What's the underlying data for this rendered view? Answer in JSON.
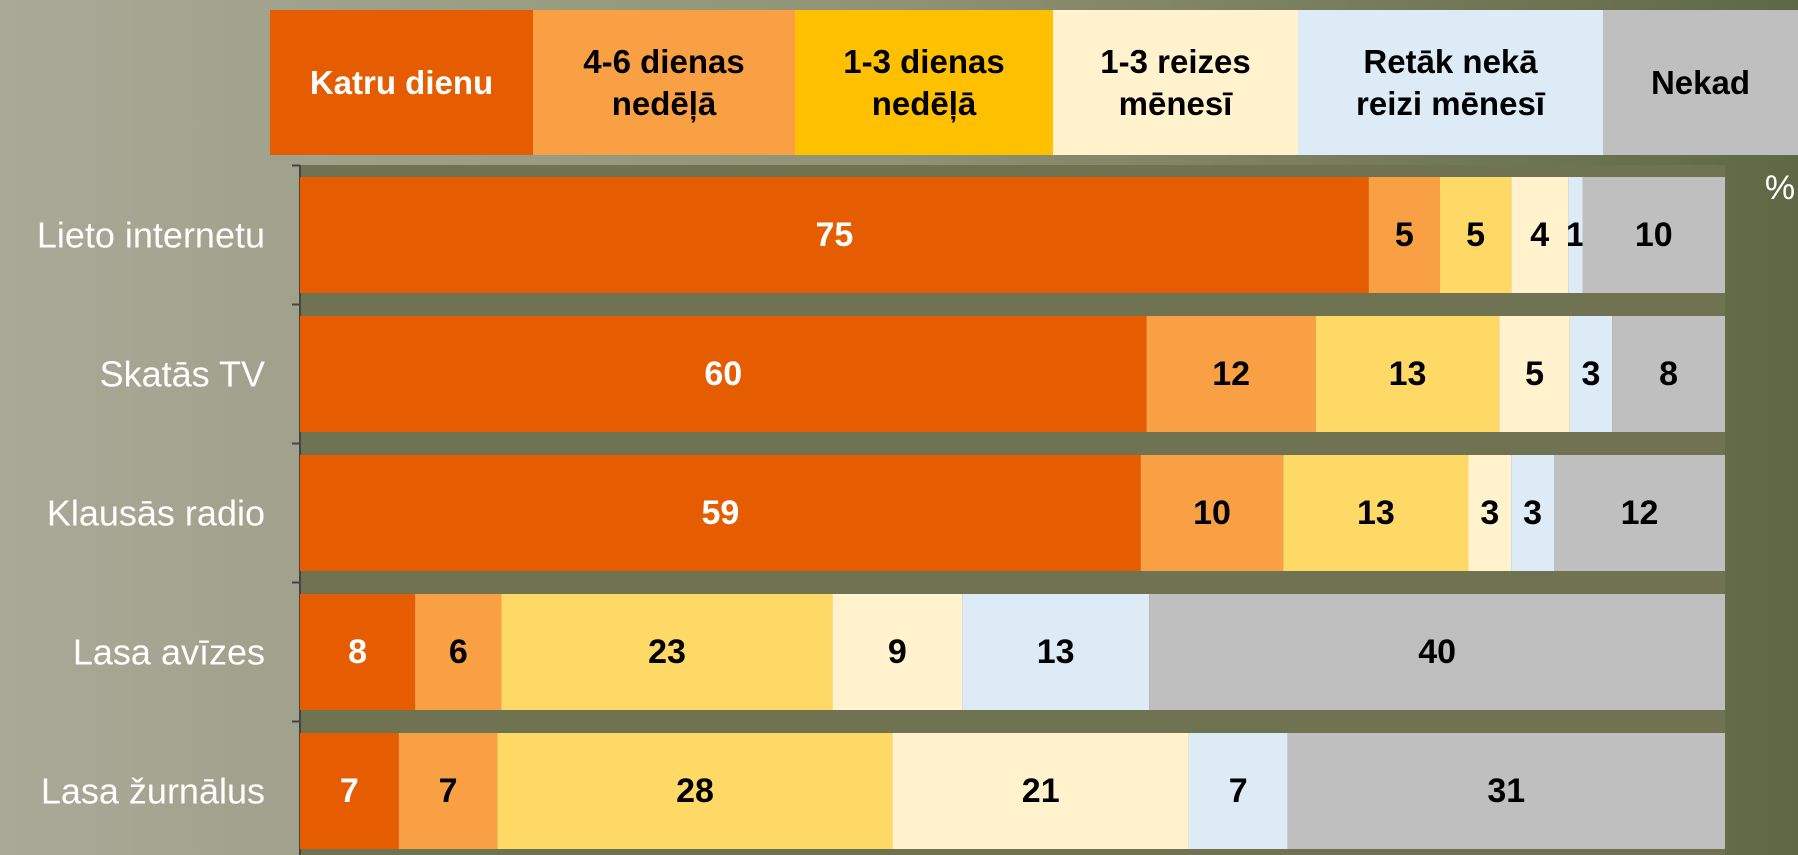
{
  "chart_data": {
    "type": "bar",
    "orientation": "horizontal",
    "stacking": "percent",
    "unit_label": "%",
    "categories": [
      "Lieto internetu",
      "Skatās TV",
      "Klausās radio",
      "Lasa avīzes",
      "Lasa žurnālus"
    ],
    "series": [
      {
        "name": "Katru dienu",
        "color": "#e65c00",
        "values": [
          75,
          60,
          59,
          8,
          7
        ]
      },
      {
        "name": "4-6 dienas nedēļā",
        "color": "#f9a045",
        "values": [
          5,
          12,
          10,
          6,
          7
        ]
      },
      {
        "name": "1-3 dienas nedēļā",
        "color": "#ffd966",
        "values": [
          5,
          13,
          13,
          23,
          28
        ]
      },
      {
        "name": "1-3 reizes mēnesī",
        "color": "#fff2cc",
        "values": [
          4,
          5,
          3,
          9,
          21
        ]
      },
      {
        "name": "Retāk nekā reizi mēnesī",
        "color": "#ddebf7",
        "values": [
          1,
          3,
          3,
          13,
          7
        ]
      },
      {
        "name": "Nekad",
        "color": "#bfbfbf",
        "values": [
          10,
          8,
          12,
          40,
          31
        ]
      }
    ],
    "legend": "top"
  }
}
